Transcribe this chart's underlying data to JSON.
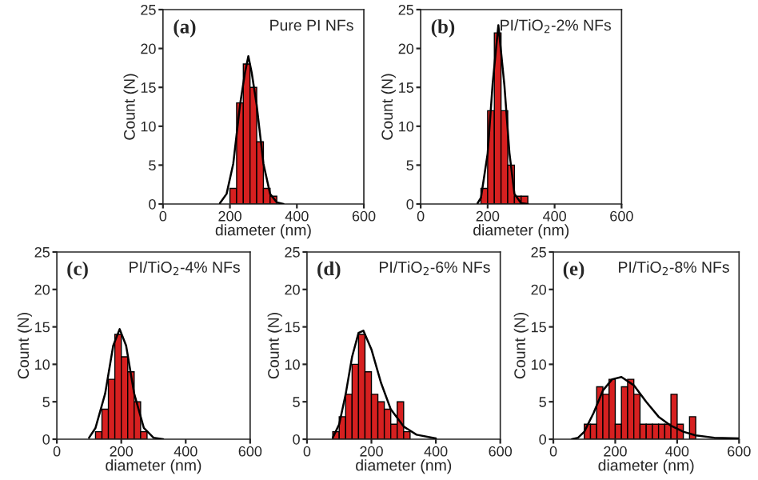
{
  "chart_data": [
    {
      "type": "histogram",
      "xlabel": "diameter (nm)",
      "ylabel": "Count (N)",
      "annotations": [
        "(a)",
        "Pure PI NFs"
      ],
      "xlim": [
        0,
        600
      ],
      "xticks": [
        0,
        200,
        400,
        600
      ],
      "ylim": [
        0,
        25
      ],
      "yticks": [
        0,
        5,
        10,
        15,
        20,
        25
      ],
      "grid": false,
      "legend": false,
      "series": [
        {
          "color": "#d62020",
          "bins": [
            200,
            220,
            240,
            260,
            280,
            300,
            320,
            340
          ],
          "values": [
            2,
            13,
            18,
            15,
            8,
            2,
            1
          ]
        },
        {
          "type": "line",
          "color": "#000000",
          "x": [
            170,
            190,
            210,
            230,
            245,
            255,
            265,
            280,
            300,
            320,
            340,
            360
          ],
          "values": [
            0.1,
            1.3,
            5.2,
            12.7,
            16.9,
            19,
            16.9,
            12.7,
            5.2,
            1.3,
            0.2,
            0
          ]
        }
      ]
    },
    {
      "type": "histogram",
      "xlabel": "diameter (nm)",
      "ylabel": "Count (N)",
      "annotations": [
        "(b)",
        "PI/TiO$_{2}$-2% NFs"
      ],
      "xlim": [
        0,
        600
      ],
      "xticks": [
        0,
        200,
        400,
        600
      ],
      "ylim": [
        0,
        25
      ],
      "yticks": [
        0,
        5,
        10,
        15,
        20,
        25
      ],
      "grid": false,
      "legend": false,
      "series": [
        {
          "color": "#d62020",
          "bins": [
            180,
            200,
            220,
            240,
            260,
            280,
            300,
            320
          ],
          "values": [
            2,
            12,
            22,
            12,
            5,
            1,
            1
          ]
        },
        {
          "type": "line",
          "color": "#000000",
          "x": [
            170,
            180,
            200,
            215,
            232,
            250,
            265,
            280,
            300,
            320
          ],
          "values": [
            0.1,
            0.8,
            6.5,
            15.5,
            23,
            15.3,
            6.6,
            1.3,
            0.1,
            0
          ]
        }
      ]
    },
    {
      "type": "histogram",
      "xlabel": "diameter (nm)",
      "ylabel": "Count (N)",
      "annotations": [
        "(c)",
        "PI/TiO$_{2}$-4% NFs"
      ],
      "xlim": [
        0,
        600
      ],
      "xticks": [
        0,
        200,
        400,
        600
      ],
      "ylim": [
        0,
        25
      ],
      "yticks": [
        0,
        5,
        10,
        15,
        20,
        25
      ],
      "grid": false,
      "legend": false,
      "series": [
        {
          "color": "#d62020",
          "bins": [
            120,
            140,
            160,
            180,
            200,
            220,
            240,
            260,
            280
          ],
          "values": [
            1,
            4,
            8,
            14,
            11,
            9,
            5,
            1
          ]
        },
        {
          "type": "line",
          "color": "#000000",
          "x": [
            100,
            120,
            150,
            175,
            195,
            215,
            240,
            270,
            300,
            330
          ],
          "values": [
            0.2,
            1.5,
            6.1,
            12.5,
            14.7,
            12.5,
            6.1,
            1.5,
            0.2,
            0
          ]
        }
      ]
    },
    {
      "type": "histogram",
      "xlabel": "diameter (nm)",
      "ylabel": "Count (N)",
      "annotations": [
        "(d)",
        "PI/TiO$_{2}$-6% NFs"
      ],
      "xlim": [
        0,
        600
      ],
      "xticks": [
        0,
        200,
        400,
        600
      ],
      "ylim": [
        0,
        25
      ],
      "yticks": [
        0,
        5,
        10,
        15,
        20,
        25
      ],
      "grid": false,
      "legend": false,
      "series": [
        {
          "color": "#d62020",
          "bins": [
            80,
            100,
            120,
            140,
            160,
            180,
            200,
            220,
            240,
            260,
            280,
            300,
            320
          ],
          "values": [
            1,
            3,
            6,
            10,
            14,
            9,
            6,
            5,
            4,
            2,
            5,
            1
          ]
        },
        {
          "type": "line",
          "color": "#000000",
          "x": [
            80,
            100,
            120,
            140,
            160,
            175,
            200,
            230,
            260,
            300,
            340,
            400
          ],
          "values": [
            0.2,
            2,
            6,
            11,
            14.2,
            14.5,
            12,
            7.5,
            4,
            1.7,
            0.6,
            0.1
          ]
        }
      ]
    },
    {
      "type": "histogram",
      "xlabel": "diameter (nm)",
      "ylabel": "Count (N)",
      "annotations": [
        "(e)",
        "PI/TiO$_{2}$-8% NFs"
      ],
      "xlim": [
        0,
        600
      ],
      "xticks": [
        0,
        200,
        400,
        600
      ],
      "ylim": [
        0,
        25
      ],
      "yticks": [
        0,
        5,
        10,
        15,
        20,
        25
      ],
      "grid": false,
      "legend": false,
      "series": [
        {
          "color": "#d62020",
          "bins": [
            100,
            120,
            140,
            160,
            180,
            200,
            220,
            240,
            260,
            280,
            300,
            320,
            340,
            360,
            380,
            400,
            420,
            440,
            460
          ],
          "values": [
            2,
            2,
            7,
            6,
            8,
            2,
            7,
            8,
            6,
            2,
            2,
            2,
            2,
            2,
            6,
            2,
            0,
            3
          ]
        },
        {
          "type": "line",
          "color": "#000000",
          "x": [
            60,
            80,
            100,
            130,
            160,
            190,
            220,
            260,
            300,
            340,
            380,
            420,
            460,
            520,
            600
          ],
          "values": [
            0,
            0.2,
            1,
            3.5,
            6.5,
            8,
            8.3,
            7.2,
            5,
            3,
            1.8,
            1,
            0.5,
            0.2,
            0.1
          ]
        }
      ]
    }
  ]
}
